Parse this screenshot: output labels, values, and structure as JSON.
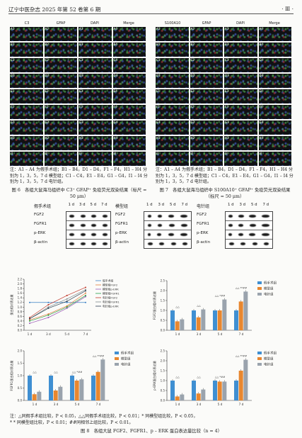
{
  "header": {
    "journal": "辽宁中医杂志 2025 年第 52 卷第 6 期",
    "page": "· Ⅲ ·"
  },
  "fig6": {
    "columns": [
      "C3",
      "GFAP",
      "DAPI",
      "Merge"
    ],
    "rows": [
      [
        "A1",
        "A2",
        "A3",
        "A4"
      ],
      [
        "B1",
        "B2",
        "B3",
        "B4"
      ],
      [
        "C1",
        "C2",
        "C3",
        "C4"
      ],
      [
        "D1",
        "D2",
        "D3",
        "D4"
      ],
      [
        "E1",
        "E2",
        "E3",
        "E4"
      ],
      [
        "F1",
        "F2",
        "F3",
        "F4"
      ],
      [
        "G1",
        "G2",
        "G3",
        "G4"
      ],
      [
        "H1",
        "H2",
        "H3",
        "H4"
      ],
      [
        "I1",
        "I2",
        "I3",
        "I4"
      ]
    ],
    "note": "注：A1 – A4 为假手术组；B1 – B4，D1 – D4，F1 – F4，H1 – H4 分别为 1，3，5，7 d 模型组；C1 – C4，E1 – E4，G1 – G4，I1 – I4 分别为 1，3，5，7 d 电针组。",
    "caption": "图 6　各组大鼠海马组织中 C3⁺ GFAP⁺ 免疫荧光双染结果（标尺 = 50 μm）"
  },
  "fig7": {
    "columns": [
      "S100A10",
      "GFAP",
      "DAPI",
      "Merge"
    ],
    "rows": [
      [
        "A1",
        "A2",
        "A3",
        "A4"
      ],
      [
        "B1",
        "B2",
        "B3",
        "B4"
      ],
      [
        "C1",
        "C2",
        "C3",
        "C4"
      ],
      [
        "D1",
        "D2",
        "D3",
        "D4"
      ],
      [
        "E1",
        "E2",
        "E3",
        "E4"
      ],
      [
        "F1",
        "F2",
        "F3",
        "F4"
      ],
      [
        "G1",
        "G2",
        "G3",
        "G4"
      ],
      [
        "H1",
        "H2",
        "H3",
        "H4"
      ],
      [
        "I1",
        "I2",
        "I3",
        "I4"
      ]
    ],
    "note": "注：A1 – A4 为假手术组；B1 – B4，D1 – D4，F1 – F4，H1 – H4 分别为 1，3，5，7 d 模型组；C1 – C4，E1 – E4，G1 – G4，I1 – I4 分别为 1，3，5，7 d 电针组。",
    "caption": "图 7　各组大鼠海马组织中 S100A10⁺ GFAP⁺ 免疫荧光双染结果（标尺 = 50 μm）"
  },
  "blots": {
    "groups": [
      "假手术组",
      "模型组",
      "电针组"
    ],
    "days": [
      "1 d",
      "3 d",
      "5 d",
      "7 d"
    ],
    "proteins": [
      "FGF2",
      "FGFR1",
      "p-ERK",
      "β-actin"
    ]
  },
  "chart_data": [
    {
      "type": "line",
      "x": [
        "1 d",
        "3 d",
        "5 d",
        "7 d"
      ],
      "ylim": [
        0,
        2.2
      ],
      "yticks": [
        "0.0",
        "0.2",
        "0.4",
        "0.6",
        "0.8",
        "1.0",
        "1.2",
        "1.4",
        "1.6",
        "1.8",
        "2.0",
        "2.2"
      ],
      "ylabel": "蛋白相对表达量",
      "series": [
        {
          "name": "假手术组",
          "color": "#3a7fc4",
          "values": [
            1.2,
            1.2,
            1.2,
            1.2
          ]
        },
        {
          "name": "模型组FGF2",
          "color": "#e07b39",
          "values": [
            0.45,
            0.7,
            1.05,
            1.6
          ]
        },
        {
          "name": "模型组p-ERK",
          "color": "#9b59b6",
          "values": [
            0.3,
            0.55,
            0.95,
            1.45
          ]
        },
        {
          "name": "模型组FGFR1",
          "color": "#27a046",
          "values": [
            0.4,
            0.65,
            1.0,
            1.5
          ]
        },
        {
          "name": "电针组FGF2",
          "color": "#c0392b",
          "values": [
            0.55,
            1.1,
            1.5,
            1.85
          ]
        },
        {
          "name": "电针组FGFR1",
          "color": "#7f8c8d",
          "values": [
            0.5,
            1.0,
            1.35,
            1.75
          ]
        },
        {
          "name": "电针组p-ERK",
          "color": "#2c3e50",
          "values": [
            0.5,
            0.95,
            1.25,
            1.7
          ]
        }
      ]
    },
    {
      "type": "bar",
      "categories": [
        "1 d",
        "3 d",
        "5 d",
        "7 d"
      ],
      "ylabel": "FGF2蛋白相对表达量",
      "ylim": [
        0,
        2.5
      ],
      "yticks": [
        "0.0",
        "0.5",
        "1.0",
        "1.5",
        "2.0",
        "2.5"
      ],
      "series": [
        {
          "name": "假手术组",
          "color": "#3f8fd2",
          "values": [
            1.0,
            1.0,
            1.0,
            1.0
          ]
        },
        {
          "name": "模型组",
          "color": "#e8872f",
          "values": [
            0.45,
            0.65,
            1.0,
            1.45
          ]
        },
        {
          "name": "电针组",
          "color": "#9aa3ad",
          "values": [
            0.55,
            1.05,
            1.55,
            1.95
          ]
        }
      ],
      "annotations": [
        "△△",
        "△△",
        "△△ *##",
        "△△ **##"
      ]
    },
    {
      "type": "bar",
      "categories": [
        "1 d",
        "3 d",
        "5 d",
        "7 d"
      ],
      "ylabel": "FGFR1蛋白相对表达量",
      "ylim": [
        0,
        2.0
      ],
      "yticks": [
        "0.0",
        "0.5",
        "1.0",
        "1.5",
        "2.0"
      ],
      "series": [
        {
          "name": "假手术组",
          "color": "#3f8fd2",
          "values": [
            1.0,
            1.0,
            1.0,
            1.0
          ]
        },
        {
          "name": "模型组",
          "color": "#e8872f",
          "values": [
            0.25,
            0.4,
            0.8,
            1.15
          ]
        },
        {
          "name": "电针组",
          "color": "#9aa3ad",
          "values": [
            0.35,
            0.55,
            0.85,
            1.65
          ]
        }
      ],
      "annotations": [
        "△△",
        "△△",
        "△△ *##",
        "△△ **##"
      ]
    },
    {
      "type": "bar",
      "categories": [
        "1 d",
        "3 d",
        "5 d",
        "7 d"
      ],
      "ylabel": "p-ERK蛋白相对表达量",
      "ylim": [
        0,
        2.5
      ],
      "yticks": [
        "0.0",
        "0.5",
        "1.0",
        "1.5",
        "2.0",
        "2.5"
      ],
      "series": [
        {
          "name": "假手术组",
          "color": "#3f8fd2",
          "values": [
            1.0,
            1.0,
            1.0,
            1.0
          ]
        },
        {
          "name": "模型组",
          "color": "#e8872f",
          "values": [
            0.2,
            0.35,
            0.95,
            1.5
          ]
        },
        {
          "name": "电针组",
          "color": "#9aa3ad",
          "values": [
            0.3,
            0.55,
            0.95,
            2.05
          ]
        }
      ],
      "annotations": [
        "△△",
        "△△",
        "△△ *##",
        "△△ **##"
      ]
    }
  ],
  "fig8": {
    "note_line1": "注：△同假手术组比较，P < 0.05，△△同假手术组比较，P < 0.01；* 同模型组比较，P < 0.05，",
    "note_line2": "* * 同模型组比较，P < 0.01；##同相邻上组比较，P < 0.01。",
    "caption": "图 8　各组大鼠 FGF2、FGFR1、p – ERK 蛋白表达量比较（n = 4）"
  }
}
